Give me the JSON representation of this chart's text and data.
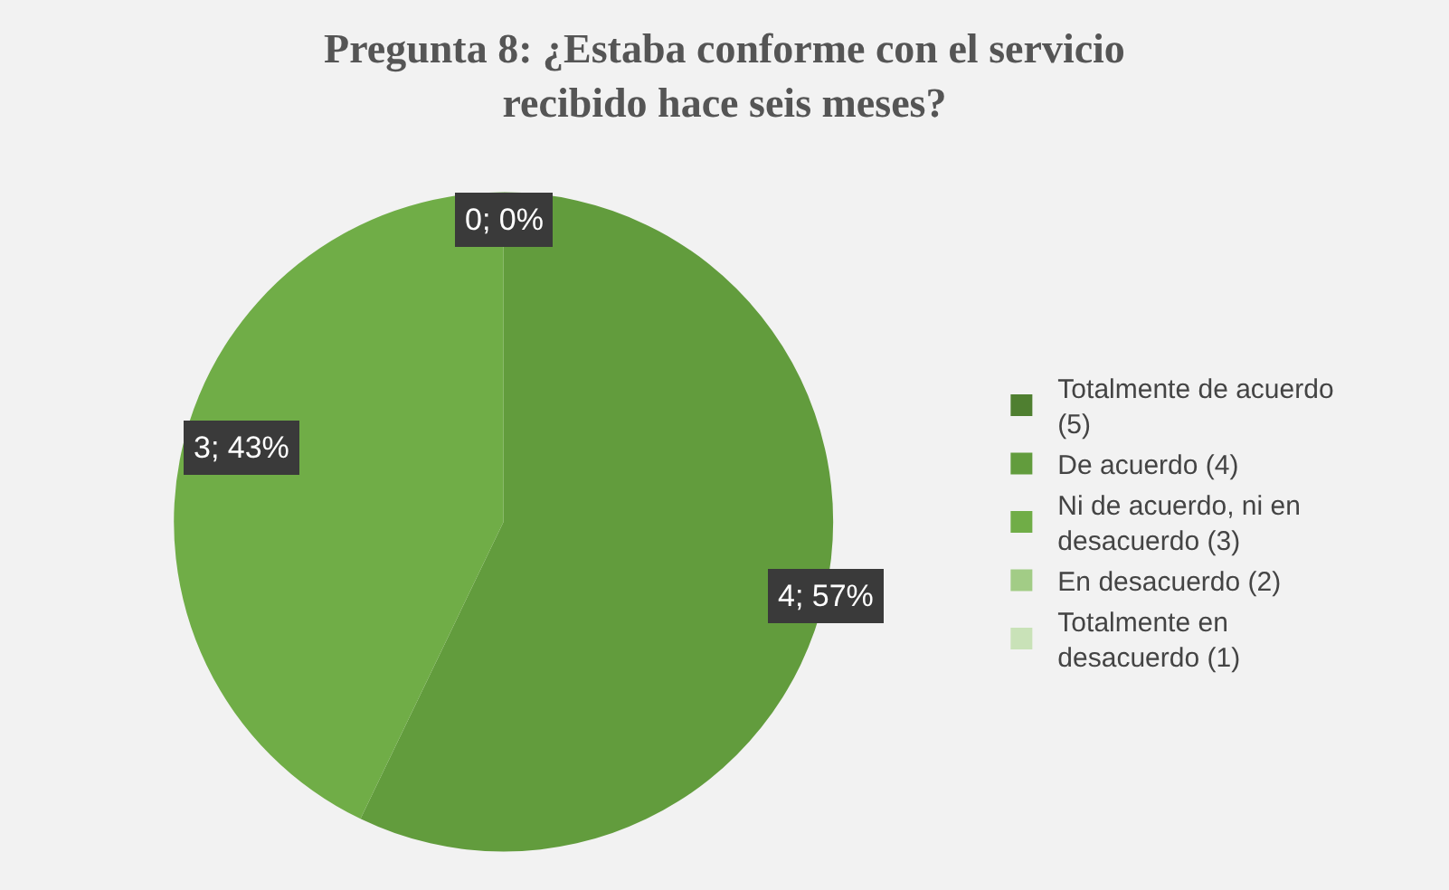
{
  "chart_data": {
    "type": "pie",
    "title": "Pregunta 8: ¿Estaba conforme con el servicio recibido hace seis meses?",
    "categories": [
      "Totalmente de acuerdo (5)",
      "De acuerdo (4)",
      "Ni de acuerdo, ni en desacuerdo (3)",
      "En desacuerdo (2)",
      "Totalmente en desacuerdo (1)"
    ],
    "values": [
      0,
      4,
      3,
      0,
      0
    ],
    "colors": [
      "#4f7f30",
      "#629c3d",
      "#70ad47",
      "#a2cc86",
      "#c9e2b8"
    ],
    "value_labels": [
      "0; 0%",
      "4; 57%",
      "3; 43%",
      null,
      null
    ],
    "legend": "right"
  }
}
